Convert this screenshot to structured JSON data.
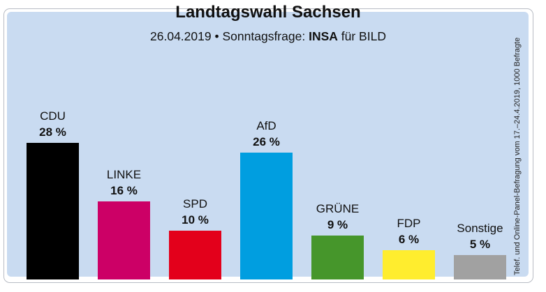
{
  "chart_data": {
    "type": "bar",
    "title": "Landtagswahl Sachsen",
    "subtitle": {
      "date": "26.04.2019",
      "bullet": "•",
      "label": "Sonntagsfrage:",
      "institute": "INSA",
      "client": "für BILD"
    },
    "side_note": "Telef. und Online-Panel-Befragung vom 17.–24.4.2019, 1000 Befragte",
    "categories": [
      "CDU",
      "LINKE",
      "SPD",
      "AfD",
      "GRÜNE",
      "FDP",
      "Sonstige"
    ],
    "values": [
      28,
      16,
      10,
      26,
      9,
      6,
      5
    ],
    "value_labels": [
      "28 %",
      "16 %",
      "10 %",
      "26 %",
      "9 %",
      "6 %",
      "5 %"
    ],
    "colors": [
      "#000000",
      "#cc0066",
      "#e3001b",
      "#009ee0",
      "#46962b",
      "#ffed2e",
      "#a1a1a1"
    ],
    "xlabel": "",
    "ylabel": "",
    "ylim": [
      0,
      28
    ],
    "grid": false,
    "legend": "none"
  },
  "colors": {
    "panel_background": "#c9dbf1",
    "frame_border": "#b8bcc4",
    "text": "#111111"
  }
}
